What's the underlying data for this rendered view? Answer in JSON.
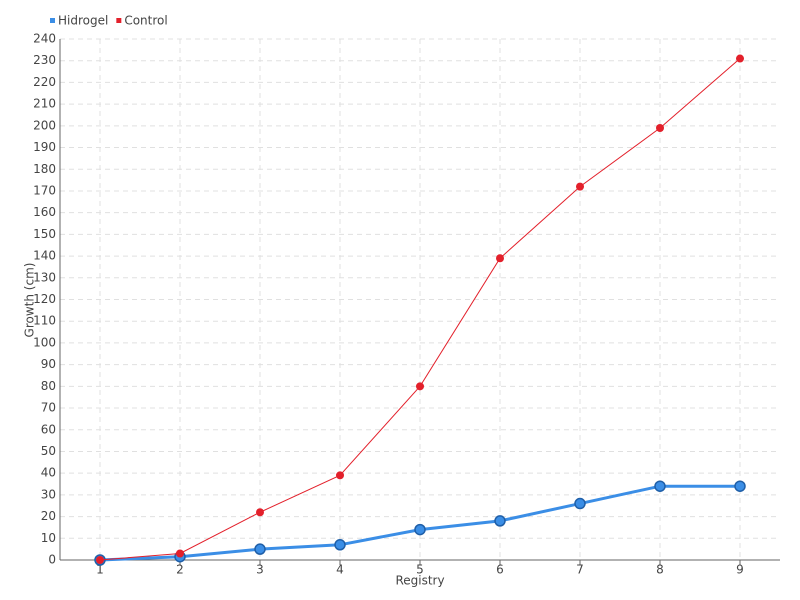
{
  "chart_data": {
    "type": "line",
    "x_label": "Registry",
    "y_label": "Growth (cm)",
    "categories": [
      "1",
      "2",
      "3",
      "4",
      "5",
      "6",
      "7",
      "8",
      "9"
    ],
    "series": [
      {
        "name": "Hidrogel",
        "color": "#3b8ee6",
        "values": [
          0,
          1.5,
          5,
          7,
          14,
          18,
          26,
          34,
          34
        ]
      },
      {
        "name": "Control",
        "color": "#e3202b",
        "values": [
          0,
          3,
          22,
          39,
          80,
          139,
          172,
          199,
          231
        ]
      }
    ],
    "ylim": [
      0,
      240
    ],
    "yticks": [
      0,
      10,
      20,
      30,
      40,
      50,
      60,
      70,
      80,
      90,
      100,
      110,
      120,
      130,
      140,
      150,
      160,
      170,
      180,
      190,
      200,
      210,
      220,
      230,
      240
    ],
    "grid": true,
    "legend": "top-left"
  }
}
